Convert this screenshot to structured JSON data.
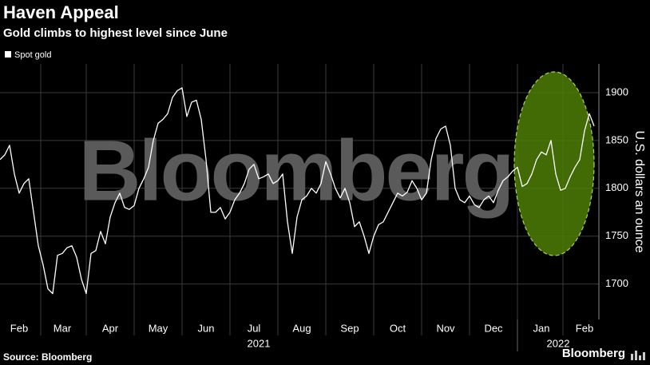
{
  "chart_data": {
    "type": "line",
    "title": "Haven Appeal",
    "subtitle": "Gold climbs to highest level since June",
    "y_axis_label": "U.S. dollars an ounce",
    "watermark": "Bloomberg",
    "source": "Source: Bloomberg",
    "logo": "Bloomberg",
    "year_labels": [
      "2021",
      "2022"
    ],
    "categories": [
      null,
      null,
      null,
      null,
      "Feb",
      null,
      null,
      null,
      null,
      null,
      null,
      null,
      null,
      "Mar",
      null,
      null,
      null,
      null,
      null,
      null,
      null,
      null,
      null,
      "Apr",
      null,
      null,
      null,
      null,
      null,
      null,
      null,
      null,
      null,
      "May",
      null,
      null,
      null,
      null,
      null,
      null,
      null,
      null,
      null,
      "Jun",
      null,
      null,
      null,
      null,
      null,
      null,
      null,
      null,
      null,
      "Jul",
      null,
      null,
      null,
      null,
      null,
      null,
      null,
      null,
      null,
      "Aug",
      null,
      null,
      null,
      null,
      null,
      null,
      null,
      null,
      null,
      "Sep",
      null,
      null,
      null,
      null,
      null,
      null,
      null,
      null,
      null,
      "Oct",
      null,
      null,
      null,
      null,
      null,
      null,
      null,
      null,
      null,
      "Nov",
      null,
      null,
      null,
      null,
      null,
      null,
      null,
      null,
      null,
      "Dec",
      null,
      null,
      null,
      null,
      null,
      null,
      null,
      null,
      null,
      "Jan",
      null,
      null,
      null,
      null,
      null,
      null,
      null,
      null,
      "Feb",
      null,
      null
    ],
    "series": [
      {
        "name": "Spot gold",
        "color": "#ffffff",
        "values": [
          1830,
          1835,
          1845,
          1815,
          1795,
          1805,
          1810,
          1775,
          1740,
          1720,
          1695,
          1690,
          1730,
          1732,
          1738,
          1740,
          1728,
          1705,
          1690,
          1732,
          1735,
          1755,
          1742,
          1770,
          1785,
          1795,
          1780,
          1778,
          1782,
          1800,
          1810,
          1822,
          1850,
          1868,
          1872,
          1878,
          1895,
          1902,
          1905,
          1875,
          1890,
          1892,
          1872,
          1830,
          1775,
          1775,
          1780,
          1768,
          1775,
          1788,
          1795,
          1805,
          1820,
          1825,
          1810,
          1812,
          1815,
          1805,
          1808,
          1815,
          1765,
          1732,
          1770,
          1788,
          1792,
          1800,
          1795,
          1805,
          1828,
          1815,
          1800,
          1790,
          1800,
          1785,
          1760,
          1765,
          1750,
          1732,
          1750,
          1762,
          1765,
          1775,
          1785,
          1795,
          1792,
          1796,
          1808,
          1800,
          1788,
          1795,
          1830,
          1852,
          1862,
          1865,
          1845,
          1800,
          1788,
          1785,
          1792,
          1783,
          1780,
          1788,
          1792,
          1785,
          1798,
          1808,
          1812,
          1818,
          1822,
          1802,
          1805,
          1815,
          1830,
          1838,
          1835,
          1850,
          1815,
          1798,
          1800,
          1812,
          1822,
          1830,
          1860,
          1878,
          1865
        ]
      }
    ],
    "ylim": [
      1663,
      1930
    ],
    "yticks": [
      1700,
      1750,
      1800,
      1850,
      1900
    ],
    "grid": true
  }
}
